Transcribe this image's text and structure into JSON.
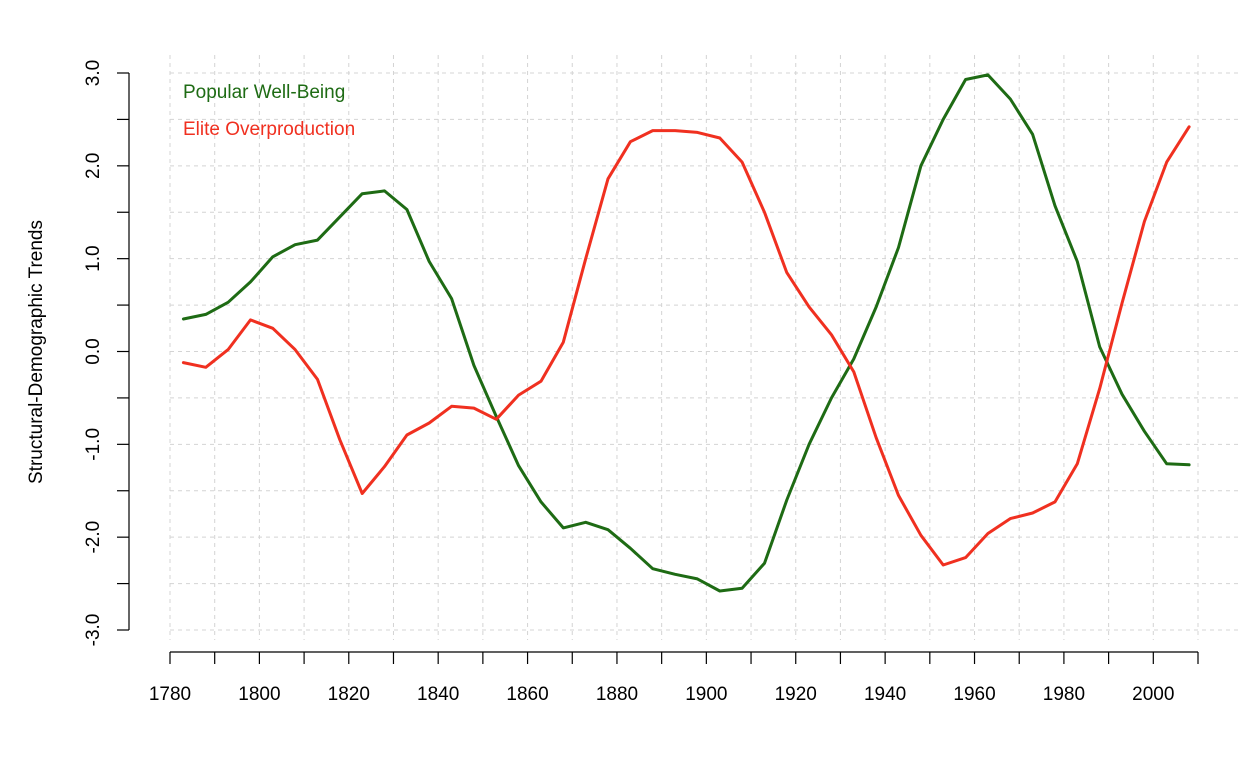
{
  "chart_data": {
    "type": "line",
    "title": "",
    "xlabel": "",
    "ylabel": "Structural-Demographic Trends",
    "xlim": [
      1780,
      2010
    ],
    "ylim": [
      -3.0,
      3.0
    ],
    "x_ticks": [
      1780,
      1800,
      1820,
      1840,
      1860,
      1880,
      1900,
      1920,
      1940,
      1960,
      1980,
      2000
    ],
    "x_tick_labels": [
      "1780",
      "1800",
      "1820",
      "1840",
      "1860",
      "1880",
      "1900",
      "1920",
      "1940",
      "1960",
      "1980",
      "2000"
    ],
    "y_ticks": [
      3.0,
      2.0,
      1.0,
      0.0,
      -1.0,
      -2.0,
      -3.0
    ],
    "y_tick_labels": [
      "3.0",
      "2.0",
      "1.0",
      "0.0",
      "-1.0",
      "-2.0",
      "-3.0"
    ],
    "grid": true,
    "legend_position": "top-left",
    "x": [
      1783,
      1788,
      1793,
      1798,
      1803,
      1808,
      1813,
      1818,
      1823,
      1828,
      1833,
      1838,
      1843,
      1848,
      1853,
      1858,
      1863,
      1868,
      1873,
      1878,
      1883,
      1888,
      1893,
      1898,
      1903,
      1908,
      1913,
      1918,
      1923,
      1928,
      1933,
      1938,
      1943,
      1948,
      1953,
      1958,
      1963,
      1968,
      1973,
      1978,
      1983,
      1988,
      1993,
      1998,
      2003,
      2008
    ],
    "series": [
      {
        "name": "Popular Well-Being",
        "color": "#1e6b14",
        "values": [
          0.35,
          0.4,
          0.53,
          0.75,
          1.02,
          1.15,
          1.2,
          1.45,
          1.7,
          1.73,
          1.53,
          0.97,
          0.57,
          -0.15,
          -0.7,
          -1.23,
          -1.62,
          -1.9,
          -1.84,
          -1.92,
          -2.12,
          -2.34,
          -2.4,
          -2.45,
          -2.58,
          -2.55,
          -2.28,
          -1.6,
          -1.0,
          -0.5,
          -0.08,
          0.48,
          1.12,
          2.0,
          2.5,
          2.93,
          2.98,
          2.72,
          2.34,
          1.57,
          0.97,
          0.05,
          -0.46,
          -0.86,
          -1.21,
          -1.22
        ]
      },
      {
        "name": "Elite Overproduction",
        "color": "#f03020",
        "values": [
          -0.12,
          -0.17,
          0.02,
          0.34,
          0.25,
          0.02,
          -0.3,
          -0.95,
          -1.53,
          -1.24,
          -0.9,
          -0.77,
          -0.59,
          -0.61,
          -0.73,
          -0.47,
          -0.32,
          0.1,
          1.0,
          1.86,
          2.26,
          2.38,
          2.38,
          2.36,
          2.3,
          2.04,
          1.5,
          0.85,
          0.48,
          0.18,
          -0.22,
          -0.93,
          -1.55,
          -1.98,
          -2.3,
          -2.22,
          -1.96,
          -1.8,
          -1.74,
          -1.62,
          -1.21,
          -0.4,
          0.52,
          1.4,
          2.04,
          2.42
        ]
      }
    ]
  }
}
